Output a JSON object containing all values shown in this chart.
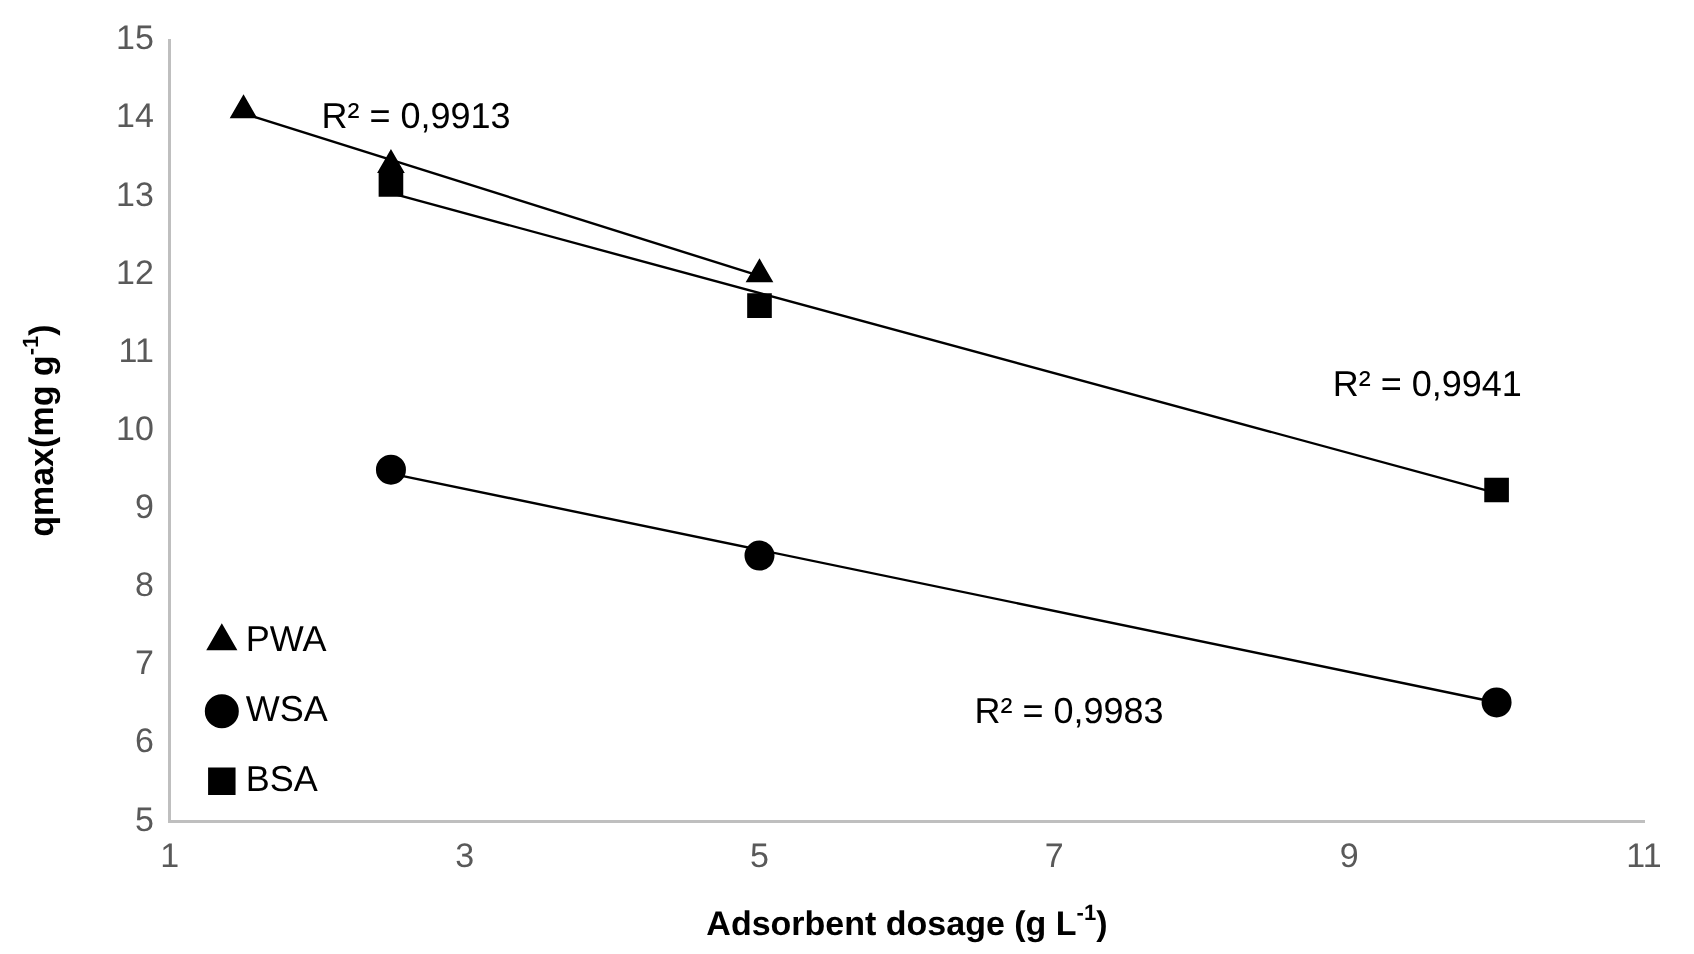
{
  "chart_data": {
    "type": "scatter",
    "xlabel": "Adsorbent dosage (g L$^{-1}$)",
    "ylabel": "qmax(mg g$^{-1}$)",
    "xlim": [
      1,
      11
    ],
    "xticks": [
      1,
      3,
      5,
      7,
      9,
      11
    ],
    "ylim": [
      5,
      15
    ],
    "yticks": [
      5,
      6,
      7,
      8,
      9,
      10,
      11,
      12,
      13,
      14,
      15
    ],
    "grid": false,
    "legend": "bottom left",
    "series": [
      {
        "name": "PWA",
        "type": "scatter",
        "marker": "triangle",
        "color": "#000000",
        "x": [
          1.5,
          2.5,
          5
        ],
        "values": [
          14.1,
          13.4,
          12.0
        ]
      },
      {
        "name": "WSA",
        "type": "scatter",
        "marker": "circle",
        "color": "#000000",
        "x": [
          2.5,
          5,
          10
        ],
        "values": [
          9.5,
          8.4,
          6.52
        ]
      },
      {
        "name": "BSA",
        "type": "scatter",
        "marker": "square",
        "color": "#000000",
        "x": [
          2.5,
          5,
          10
        ],
        "values": [
          13.15,
          11.6,
          9.24
        ]
      },
      {
        "type": "line",
        "marker": "none",
        "line_style": "solid",
        "color": "#000000",
        "x": [
          1.5,
          5
        ],
        "values": [
          14.06,
          11.98
        ]
      },
      {
        "type": "line",
        "marker": "none",
        "line_style": "solid",
        "color": "#000000",
        "x": [
          2.5,
          10
        ],
        "values": [
          9.45,
          6.52
        ]
      },
      {
        "type": "line",
        "marker": "none",
        "line_style": "solid",
        "color": "#000000",
        "x": [
          2.5,
          10
        ],
        "values": [
          13.04,
          9.2
        ]
      }
    ],
    "annotations": [
      "R² = 0,9913",
      "R² = 0,9941",
      "R² = 0,9983"
    ]
  }
}
